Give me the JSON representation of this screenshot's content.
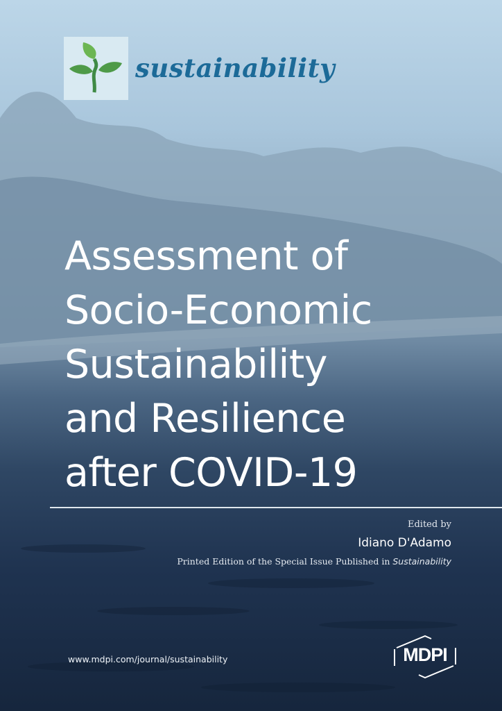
{
  "journal_logo": {
    "text": "sustainability",
    "brand_color": "#1c6a98",
    "icon": "leaf-sprout-icon",
    "icon_color": "#4e9a48"
  },
  "title_lines": [
    "Assessment of",
    "Socio-Economic",
    "Sustainability",
    "and Resilience",
    "after COVID-19"
  ],
  "edited_by_label": "Edited by",
  "editor": "Idiano D'Adamo",
  "printed_edition": {
    "prefix": "Printed Edition of the Special Issue Published in",
    "journal": "Sustainability"
  },
  "url": "www.mdpi.com/journal/sustainability",
  "publisher_logo": {
    "text": "MDPI",
    "icon": "hexagon-icon"
  }
}
